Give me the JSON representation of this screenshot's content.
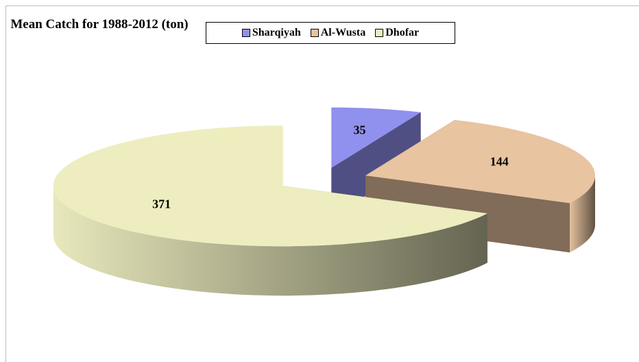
{
  "chart_data": {
    "type": "pie3d",
    "title": "Mean Catch for 1988-2012 (ton)",
    "series": [
      {
        "name": "Sharqiyah",
        "color": "#9090ee"
      },
      {
        "name": "Al-Wusta",
        "color": "#e8c4a0"
      },
      {
        "name": "Dhofar",
        "color": "#ededc0"
      }
    ],
    "values": [
      35,
      144,
      371
    ],
    "legend": "top"
  }
}
